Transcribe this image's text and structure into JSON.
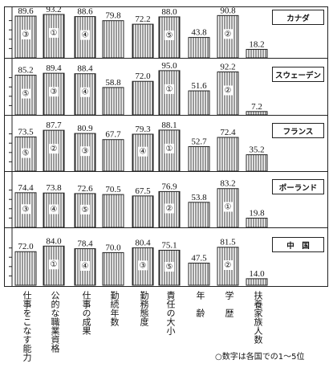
{
  "chart_data": {
    "type": "bar",
    "categories": [
      "仕事をこなす能力",
      "公的な職業資格",
      "仕事の成果",
      "勤続年数",
      "勤務態度",
      "責任の大小",
      "年　齢",
      "学　歴",
      "扶養家族人数"
    ],
    "panels": [
      {
        "country": "カナダ",
        "values": [
          89.6,
          93.2,
          88.6,
          79.8,
          72.2,
          88.0,
          43.8,
          90.8,
          18.2
        ],
        "value_labels": [
          "89.6",
          "93.2",
          "88.6",
          "79.8",
          "72.2",
          "88.0",
          "43.8",
          "90.8",
          "18.2"
        ],
        "ranks": [
          "③",
          "①",
          "④",
          null,
          null,
          "⑤",
          null,
          "②",
          null
        ]
      },
      {
        "country": "スウェーデン",
        "values": [
          85.2,
          89.4,
          88.4,
          58.8,
          72.0,
          95.0,
          51.6,
          92.2,
          7.2
        ],
        "value_labels": [
          "85.2",
          "89.4",
          "88.4",
          "58.8",
          "72.0",
          "95.0",
          "51.6",
          "92.2",
          "7.2"
        ],
        "ranks": [
          "⑤",
          "③",
          "④",
          null,
          null,
          "①",
          null,
          "②",
          null
        ]
      },
      {
        "country": "フランス",
        "values": [
          73.5,
          87.7,
          80.9,
          67.7,
          79.3,
          88.1,
          52.7,
          72.4,
          35.2
        ],
        "value_labels": [
          "73.5",
          "87.7",
          "80.9",
          "67.7",
          "79.3",
          "88.1",
          "52.7",
          "72.4",
          "35.2"
        ],
        "ranks": [
          "⑤",
          "②",
          "③",
          null,
          "④",
          "①",
          null,
          null,
          null
        ]
      },
      {
        "country": "ポーランド",
        "values": [
          74.4,
          73.8,
          72.6,
          70.5,
          67.5,
          76.9,
          53.8,
          83.2,
          19.8
        ],
        "value_labels": [
          "74.4",
          "73.8",
          "72.6",
          "70.5",
          "67.5",
          "76.9",
          "53.8",
          "83.2",
          "19.8"
        ],
        "ranks": [
          "③",
          "④",
          "⑤",
          null,
          null,
          "②",
          null,
          "①",
          null
        ]
      },
      {
        "country": "中　国",
        "values": [
          72.0,
          84.0,
          78.4,
          70.0,
          80.4,
          75.1,
          47.5,
          81.5,
          14.0
        ],
        "value_labels": [
          "72.0",
          "84.0",
          "78.4",
          "70.0",
          "80.4",
          "75.1",
          "47.5",
          "81.5",
          "14.0"
        ],
        "ranks": [
          null,
          "①",
          "④",
          null,
          "③",
          "⑤",
          null,
          "②",
          null
        ]
      }
    ],
    "ylim": [
      0,
      100
    ],
    "note": "○数字は各国での1～5位"
  }
}
